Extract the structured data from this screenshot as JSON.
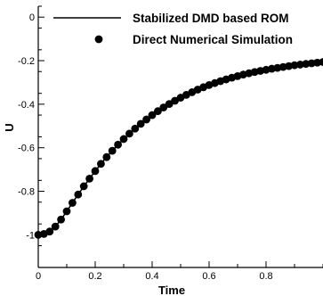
{
  "chart_data": {
    "type": "line",
    "xlabel": "Time",
    "ylabel": "U",
    "xlim": [
      0,
      1
    ],
    "ylim": [
      -1.15,
      0.05
    ],
    "x_ticks": [
      0,
      0.2,
      0.4,
      0.6,
      0.8
    ],
    "x_tick_labels": [
      "0",
      "0.2",
      "0.4",
      "0.6",
      "0.8"
    ],
    "y_ticks": [
      0,
      -0.2,
      -0.4,
      -0.6,
      -0.8,
      -1
    ],
    "y_tick_labels": [
      "0",
      "-0.2",
      "-0.4",
      "-0.6",
      "-0.8",
      "-1"
    ],
    "grid": false,
    "legend_position": "top-right",
    "series": [
      {
        "name": "Stabilized DMD based ROM",
        "style": "line",
        "color": "#000000",
        "x": [
          0,
          0.02,
          0.04,
          0.06,
          0.08,
          0.1,
          0.12,
          0.14,
          0.16,
          0.18,
          0.2,
          0.22,
          0.24,
          0.26,
          0.28,
          0.3,
          0.32,
          0.34,
          0.36,
          0.38,
          0.4,
          0.42,
          0.44,
          0.46,
          0.48,
          0.5,
          0.52,
          0.54,
          0.56,
          0.58,
          0.6,
          0.62,
          0.64,
          0.66,
          0.68,
          0.7,
          0.72,
          0.74,
          0.76,
          0.78,
          0.8,
          0.82,
          0.84,
          0.86,
          0.88,
          0.9,
          0.92,
          0.94,
          0.96,
          0.98,
          1.0
        ],
        "y": [
          -1.0,
          -0.996,
          -0.985,
          -0.962,
          -0.93,
          -0.892,
          -0.853,
          -0.815,
          -0.777,
          -0.742,
          -0.707,
          -0.674,
          -0.643,
          -0.614,
          -0.586,
          -0.56,
          -0.535,
          -0.512,
          -0.49,
          -0.47,
          -0.45,
          -0.432,
          -0.415,
          -0.399,
          -0.384,
          -0.37,
          -0.357,
          -0.345,
          -0.333,
          -0.322,
          -0.312,
          -0.303,
          -0.294,
          -0.286,
          -0.278,
          -0.271,
          -0.264,
          -0.258,
          -0.252,
          -0.247,
          -0.242,
          -0.237,
          -0.233,
          -0.229,
          -0.225,
          -0.221,
          -0.218,
          -0.215,
          -0.212,
          -0.209,
          -0.206
        ]
      },
      {
        "name": "Direct Numerical Simulation",
        "style": "markers",
        "color": "#000000",
        "x": [
          0,
          0.02,
          0.04,
          0.06,
          0.08,
          0.1,
          0.12,
          0.14,
          0.16,
          0.18,
          0.2,
          0.22,
          0.24,
          0.26,
          0.28,
          0.3,
          0.32,
          0.34,
          0.36,
          0.38,
          0.4,
          0.42,
          0.44,
          0.46,
          0.48,
          0.5,
          0.52,
          0.54,
          0.56,
          0.58,
          0.6,
          0.62,
          0.64,
          0.66,
          0.68,
          0.7,
          0.72,
          0.74,
          0.76,
          0.78,
          0.8,
          0.82,
          0.84,
          0.86,
          0.88,
          0.9,
          0.92,
          0.94,
          0.96,
          0.98,
          1.0
        ],
        "y": [
          -1.0,
          -0.996,
          -0.985,
          -0.962,
          -0.93,
          -0.892,
          -0.853,
          -0.815,
          -0.777,
          -0.742,
          -0.707,
          -0.674,
          -0.643,
          -0.614,
          -0.586,
          -0.56,
          -0.535,
          -0.512,
          -0.49,
          -0.47,
          -0.45,
          -0.432,
          -0.415,
          -0.399,
          -0.384,
          -0.37,
          -0.357,
          -0.345,
          -0.333,
          -0.322,
          -0.312,
          -0.303,
          -0.294,
          -0.286,
          -0.278,
          -0.271,
          -0.264,
          -0.258,
          -0.252,
          -0.247,
          -0.242,
          -0.237,
          -0.233,
          -0.229,
          -0.225,
          -0.221,
          -0.218,
          -0.215,
          -0.212,
          -0.209,
          -0.206
        ]
      }
    ]
  }
}
